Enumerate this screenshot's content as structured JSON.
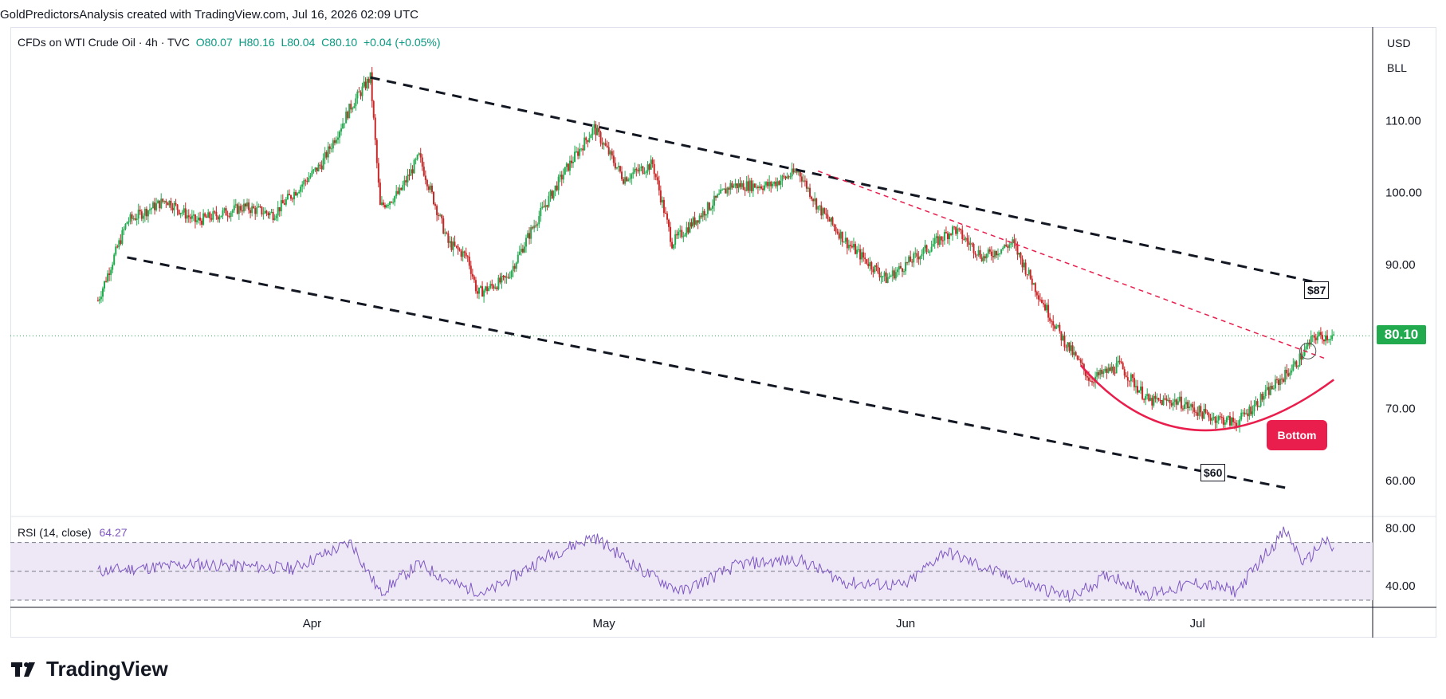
{
  "header": {
    "text": "GoldPredictorsAnalysis created with TradingView.com, Jul 16, 2026 02:09 UTC"
  },
  "symbol": {
    "name": "CFDs on WTI Crude Oil · 4h · TVC",
    "open": "O80.07",
    "high": "H80.16",
    "low": "L80.04",
    "close": "C80.10",
    "change": "+0.04 (+0.05%)"
  },
  "units": {
    "currency": "USD",
    "unit": "BLL"
  },
  "rsi": {
    "label": "RSI (14, close)",
    "value": "64.27"
  },
  "labels": {
    "last_price": "80.10",
    "bottom": "Bottom",
    "target_high": "$87",
    "target_low": "$60"
  },
  "footer": {
    "brand": "TradingView"
  },
  "colors": {
    "up": "#22ab4e",
    "down": "#c62828",
    "rsi": "#7e57c2",
    "rsi_band": "#ede7f6",
    "trend": "#131722",
    "red": "#e91e4c"
  },
  "chart_data": {
    "type": "candlestick",
    "timeframe": "4h",
    "x_ticks": [
      "Apr",
      "May",
      "Jun",
      "Jul"
    ],
    "y_ticks": [
      "60.00",
      "70.00",
      "80.00",
      "90.00",
      "100.00",
      "110.00"
    ],
    "ylim": [
      55,
      123
    ],
    "last_price": 80.1,
    "price_path": [
      [
        "Mar 10",
        85
      ],
      [
        "Mar 13",
        96
      ],
      [
        "Mar 17",
        99
      ],
      [
        "Mar 20",
        96
      ],
      [
        "Mar 25",
        98
      ],
      [
        "Mar 28",
        97
      ],
      [
        "Apr 2",
        104
      ],
      [
        "Apr 5",
        112
      ],
      [
        "Apr 7",
        116
      ],
      [
        "Apr 8",
        98
      ],
      [
        "Apr 10",
        100
      ],
      [
        "Apr 12",
        105
      ],
      [
        "Apr 15",
        93
      ],
      [
        "Apr 17",
        91
      ],
      [
        "Apr 18",
        86
      ],
      [
        "Apr 21",
        88
      ],
      [
        "Apr 24",
        96
      ],
      [
        "Apr 27",
        103
      ],
      [
        "Apr 30",
        109
      ],
      [
        "May 3",
        102
      ],
      [
        "May 6",
        104
      ],
      [
        "May 8",
        93
      ],
      [
        "May 11",
        97
      ],
      [
        "May 14",
        101
      ],
      [
        "May 18",
        101
      ],
      [
        "May 21",
        103
      ],
      [
        "May 23",
        98
      ],
      [
        "May 26",
        93
      ],
      [
        "May 30",
        88
      ],
      [
        "Jun 3",
        92
      ],
      [
        "Jun 6",
        95
      ],
      [
        "Jun 9",
        91
      ],
      [
        "Jun 12",
        93
      ],
      [
        "Jun 15",
        85
      ],
      [
        "Jun 17",
        80
      ],
      [
        "Jun 20",
        74
      ],
      [
        "Jun 23",
        76
      ],
      [
        "Jun 26",
        71
      ],
      [
        "Jun 29",
        71
      ],
      [
        "Jul 2",
        69
      ],
      [
        "Jul 5",
        68
      ],
      [
        "Jul 8",
        72
      ],
      [
        "Jul 11",
        76
      ],
      [
        "Jul 13",
        80
      ],
      [
        "Jul 15",
        80.1
      ]
    ],
    "trendlines": [
      {
        "name": "channel-upper",
        "style": "dashed",
        "from": [
          "Apr 7",
          116
        ],
        "to": [
          "Jul 15",
          87
        ]
      },
      {
        "name": "channel-lower",
        "style": "dashed",
        "from": [
          "Mar 13",
          91
        ],
        "to": [
          "Jul 10",
          59
        ]
      },
      {
        "name": "red-resistance",
        "style": "dashed",
        "from": [
          "May 23",
          103
        ],
        "to": [
          "Jul 14",
          77
        ]
      }
    ],
    "bottom_arc": {
      "from": [
        "Jun 19",
        76
      ],
      "min": [
        "Jul 1",
        67
      ],
      "to": [
        "Jul 15",
        74
      ]
    },
    "rsi": {
      "name": "RSI (14, close)",
      "last": 64.27,
      "ylim": [
        25,
        88
      ],
      "band": [
        30,
        70
      ],
      "levels": [
        30,
        50,
        70
      ],
      "y_ticks": [
        "40.00",
        "80.00"
      ],
      "path": [
        [
          "Mar 10",
          50
        ],
        [
          "Mar 20",
          55
        ],
        [
          "Mar 30",
          52
        ],
        [
          "Apr 5",
          70
        ],
        [
          "Apr 8",
          35
        ],
        [
          "Apr 12",
          55
        ],
        [
          "Apr 16",
          40
        ],
        [
          "Apr 19",
          35
        ],
        [
          "Apr 25",
          60
        ],
        [
          "Apr 30",
          74
        ],
        [
          "May 5",
          50
        ],
        [
          "May 9",
          36
        ],
        [
          "May 15",
          55
        ],
        [
          "May 21",
          58
        ],
        [
          "May 26",
          42
        ],
        [
          "Jun 1",
          40
        ],
        [
          "Jun 5",
          64
        ],
        [
          "Jun 10",
          50
        ],
        [
          "Jun 14",
          40
        ],
        [
          "Jun 18",
          32
        ],
        [
          "Jun 22",
          48
        ],
        [
          "Jun 26",
          34
        ],
        [
          "Jul 1",
          42
        ],
        [
          "Jul 5",
          36
        ],
        [
          "Jul 8",
          62
        ],
        [
          "Jul 10",
          78
        ],
        [
          "Jul 12",
          55
        ],
        [
          "Jul 14",
          72
        ],
        [
          "Jul 15",
          64
        ]
      ]
    }
  }
}
